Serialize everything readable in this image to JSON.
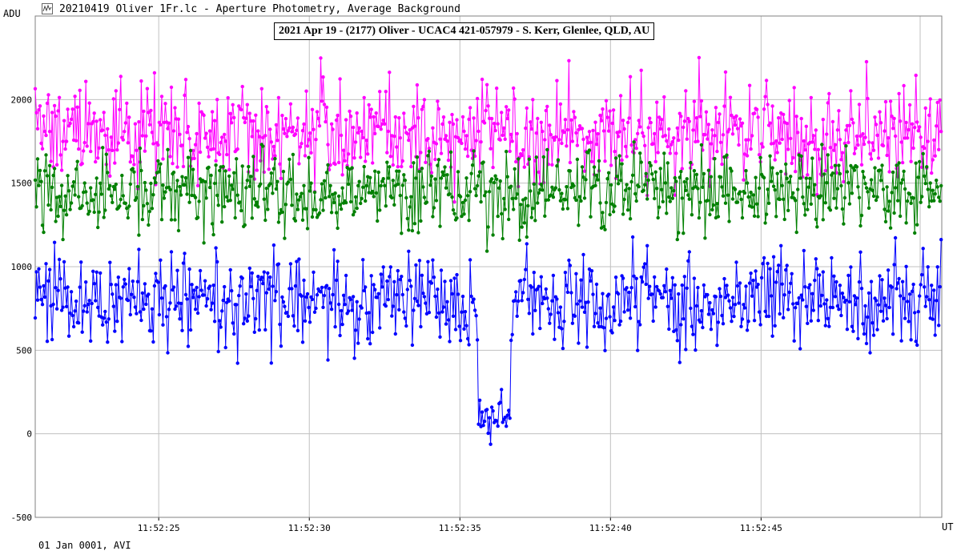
{
  "window": {
    "title": "20210419 Oliver 1Fr.lc - Aperture Photometry, Average Background",
    "icon": "light-curve-app-icon"
  },
  "footer": {
    "info": "01 Jan 0001, AVI"
  },
  "chart_data": {
    "type": "line",
    "title": "2021 Apr 19 - (2177) Oliver - UCAC4 421-057979 - S. Kerr, Glenlee, QLD, AU",
    "ylabel": "ADU",
    "xlabel": "UT",
    "ylim": [
      -500,
      2500
    ],
    "xlim": [
      "11:52:20.9",
      "11:52:51.0"
    ],
    "yticks": [
      -500,
      0,
      500,
      1000,
      1500,
      2000
    ],
    "xticks": [
      "11:52:25",
      "11:52:30",
      "11:52:35",
      "11:52:40",
      "11:52:45"
    ],
    "grid": true,
    "sample_interval_s": 0.04,
    "markers": "circle",
    "series": [
      {
        "role": "comparison-1",
        "color": "#ff00ff",
        "mean_adu": 1800,
        "scatter_adu": 150,
        "range_adu": [
          1300,
          2400
        ]
      },
      {
        "role": "comparison-2",
        "color": "#008000",
        "mean_adu": 1450,
        "scatter_adu": 120,
        "range_adu": [
          1050,
          2000
        ]
      },
      {
        "role": "target",
        "color": "#0000ff",
        "mean_adu": 800,
        "scatter_adu": 140,
        "range_adu": [
          330,
          1220
        ],
        "occultation": {
          "start": "11:52:35.6",
          "end": "11:52:36.7",
          "mean_adu": 100,
          "min_adu": -95,
          "max_adu": 265
        }
      }
    ]
  }
}
